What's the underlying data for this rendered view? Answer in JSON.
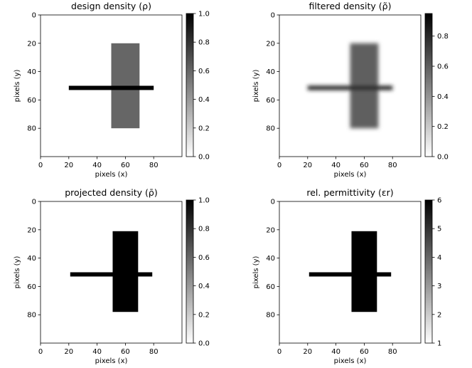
{
  "chart_data": [
    {
      "type": "heatmap",
      "title": "design density (ρ)",
      "xlabel": "pixels (x)",
      "ylabel": "pixels (y)",
      "xlim": [
        0,
        100
      ],
      "ylim": [
        100,
        0
      ],
      "xticks": [
        0,
        20,
        40,
        60,
        80
      ],
      "yticks": [
        0,
        20,
        40,
        60,
        80
      ],
      "colormap": "gray_r",
      "colorbar": {
        "range": [
          0,
          1
        ],
        "ticks": [
          "0.0",
          "0.2",
          "0.4",
          "0.6",
          "0.8",
          "1.0"
        ]
      },
      "shapes": [
        {
          "name": "vertical-bar",
          "x": [
            50,
            70
          ],
          "y": [
            20,
            80
          ],
          "value": 0.6
        },
        {
          "name": "horizontal-bar",
          "x": [
            20,
            80
          ],
          "y": [
            50,
            53
          ],
          "value": 1.0
        }
      ]
    },
    {
      "type": "heatmap",
      "title": "filtered density (ρ̃)",
      "xlabel": "pixels (x)",
      "ylabel": "pixels (y)",
      "xlim": [
        0,
        100
      ],
      "ylim": [
        100,
        0
      ],
      "xticks": [
        0,
        20,
        40,
        60,
        80
      ],
      "yticks": [
        0,
        20,
        40,
        60,
        80
      ],
      "colormap": "gray_r",
      "blur": true,
      "colorbar": {
        "range": [
          0,
          0.95
        ],
        "ticks": [
          "0.0",
          "0.2",
          "0.4",
          "0.6",
          "0.8"
        ]
      },
      "shapes": [
        {
          "name": "vertical-bar",
          "x": [
            50,
            70
          ],
          "y": [
            20,
            80
          ],
          "value": 0.6
        },
        {
          "name": "horizontal-bar",
          "x": [
            20,
            80
          ],
          "y": [
            50,
            53
          ],
          "value": 0.85
        }
      ]
    },
    {
      "type": "heatmap",
      "title": "projected density (ρ̄)",
      "xlabel": "pixels (x)",
      "ylabel": "pixels (y)",
      "xlim": [
        0,
        100
      ],
      "ylim": [
        100,
        0
      ],
      "xticks": [
        0,
        20,
        40,
        60,
        80
      ],
      "yticks": [
        0,
        20,
        40,
        60,
        80
      ],
      "colormap": "gray_r",
      "colorbar": {
        "range": [
          0,
          1
        ],
        "ticks": [
          "0.0",
          "0.2",
          "0.4",
          "0.6",
          "0.8",
          "1.0"
        ]
      },
      "shapes": [
        {
          "name": "vertical-bar",
          "x": [
            51,
            69
          ],
          "y": [
            21,
            78
          ],
          "value": 1.0
        },
        {
          "name": "horizontal-bar",
          "x": [
            21,
            79
          ],
          "y": [
            50,
            53
          ],
          "value": 1.0
        }
      ]
    },
    {
      "type": "heatmap",
      "title": "rel. permittivity (εr)",
      "xlabel": "pixels (x)",
      "ylabel": "pixels (y)",
      "xlim": [
        0,
        100
      ],
      "ylim": [
        100,
        0
      ],
      "xticks": [
        0,
        20,
        40,
        60,
        80
      ],
      "yticks": [
        0,
        20,
        40,
        60,
        80
      ],
      "colormap": "gray_r",
      "colorbar": {
        "range": [
          1,
          6
        ],
        "ticks": [
          "1",
          "2",
          "3",
          "4",
          "5",
          "6"
        ]
      },
      "shapes": [
        {
          "name": "vertical-bar",
          "x": [
            51,
            69
          ],
          "y": [
            21,
            78
          ],
          "value": 6
        },
        {
          "name": "horizontal-bar",
          "x": [
            21,
            79
          ],
          "y": [
            50,
            53
          ],
          "value": 6
        }
      ]
    }
  ]
}
